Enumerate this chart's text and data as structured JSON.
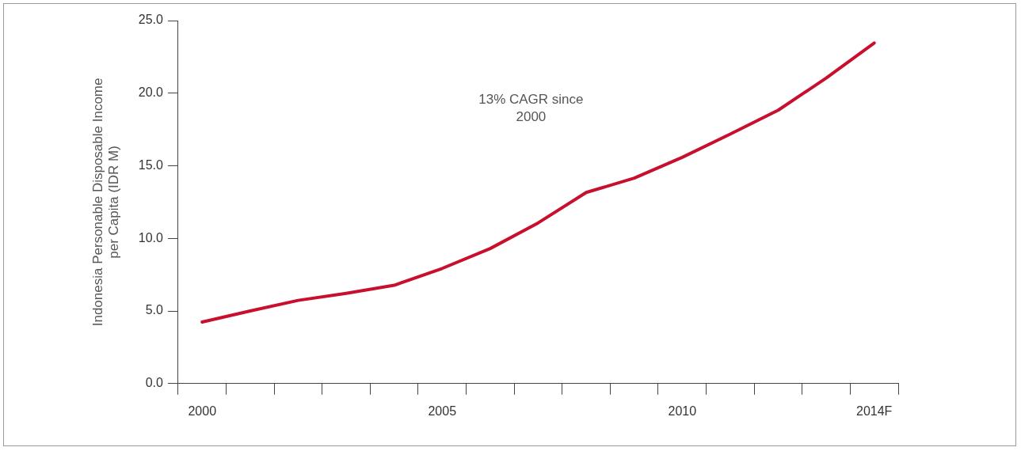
{
  "chart_data": {
    "type": "line",
    "categories": [
      "2000",
      null,
      null,
      null,
      null,
      "2005",
      null,
      null,
      null,
      null,
      "2010",
      null,
      null,
      null,
      "2014F"
    ],
    "series": [
      {
        "color": "#c8102e",
        "values": [
          4.24,
          5.0,
          5.73,
          6.22,
          6.77,
          7.93,
          9.3,
          11.07,
          13.16,
          14.15,
          15.58,
          17.18,
          18.83,
          21.04,
          23.46
        ]
      }
    ],
    "ylabel": "Indonesia Personable Disposable Income per Capita (IDR M)",
    "ylim": [
      0,
      25
    ],
    "yticks": [
      {
        "value": 0,
        "label": "0.0"
      },
      {
        "value": 5,
        "label": "5.0"
      },
      {
        "value": 10,
        "label": "10.0"
      },
      {
        "value": 15,
        "label": "15.0"
      },
      {
        "value": 20,
        "label": "20.0"
      },
      {
        "value": 25,
        "label": "25.0"
      }
    ],
    "annotations": [
      "13% CAGR since 2000"
    ],
    "grid": false,
    "legend": false,
    "marker": "none",
    "line_style": "solid"
  }
}
